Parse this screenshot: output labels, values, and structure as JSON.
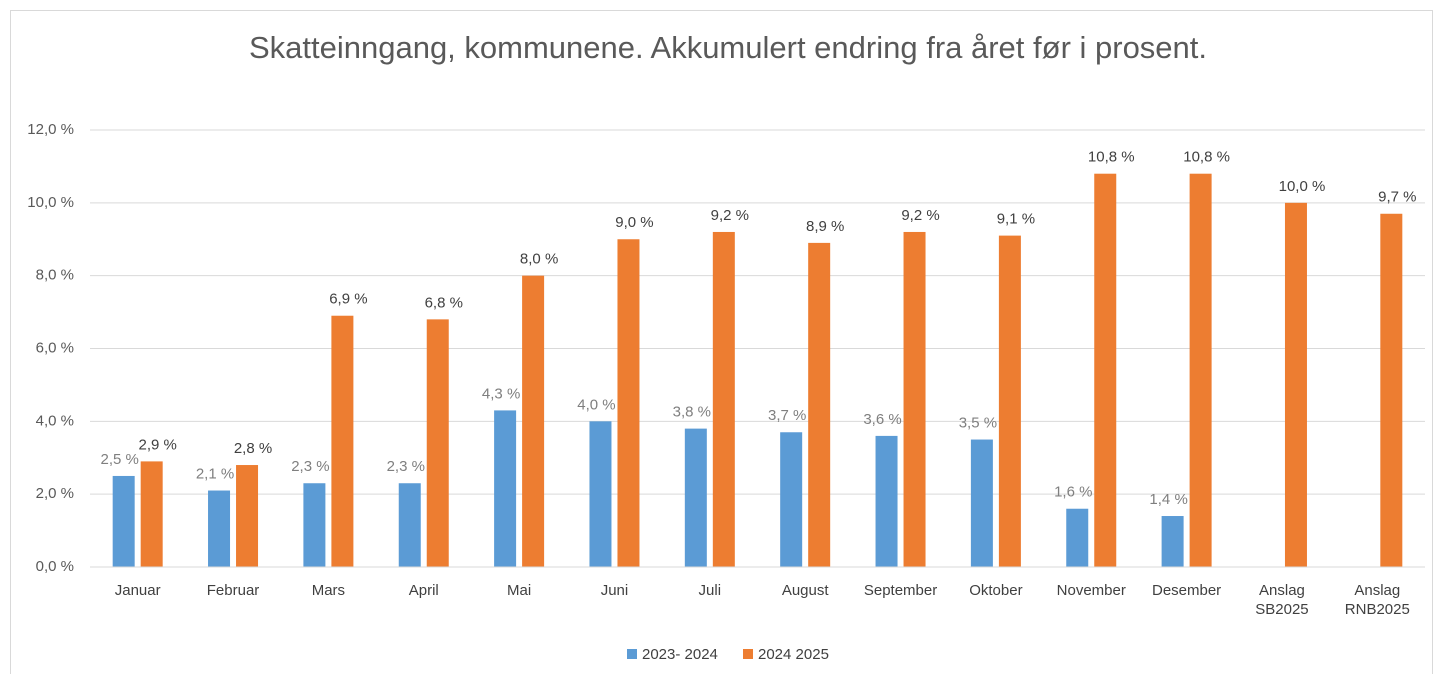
{
  "chart_data": {
    "type": "bar",
    "title": "Skatteinngang, kommunene. Akkumulert endring fra året før i prosent.",
    "categories": [
      "Januar",
      "Februar",
      "Mars",
      "April",
      "Mai",
      "Juni",
      "Juli",
      "August",
      "September",
      "Oktober",
      "November",
      "Desember",
      "Anslag SB2025",
      "Anslag RNB2025"
    ],
    "series": [
      {
        "name": "2023- 2024",
        "color": "#5b9bd5",
        "values": [
          2.5,
          2.1,
          2.3,
          2.3,
          4.3,
          4.0,
          3.8,
          3.7,
          3.6,
          3.5,
          1.6,
          1.4,
          null,
          null
        ],
        "value_labels": [
          "2,5 %",
          "2,1 %",
          "2,3 %",
          "2,3 %",
          "4,3 %",
          "4,0 %",
          "3,8 %",
          "3,7 %",
          "3,6 %",
          "3,5 %",
          "1,6 %",
          "1,4 %",
          null,
          null
        ]
      },
      {
        "name": "2024 2025",
        "color": "#ed7d31",
        "values": [
          2.9,
          2.8,
          6.9,
          6.8,
          8.0,
          9.0,
          9.2,
          8.9,
          9.2,
          9.1,
          10.8,
          10.8,
          10.0,
          9.7
        ],
        "value_labels": [
          "2,9 %",
          "2,8 %",
          "6,9 %",
          "6,8 %",
          "8,0 %",
          "9,0 %",
          "9,2 %",
          "8,9 %",
          "9,2 %",
          "9,1 %",
          "10,8 %",
          "10,8 %",
          "10,0 %",
          "9,7 %"
        ]
      }
    ],
    "ylim": [
      0,
      12
    ],
    "yticks": [
      {
        "value": 0,
        "label": "0,0 %"
      },
      {
        "value": 2,
        "label": "2,0 %"
      },
      {
        "value": 4,
        "label": "4,0 %"
      },
      {
        "value": 6,
        "label": "6,0 %"
      },
      {
        "value": 8,
        "label": "8,0 %"
      },
      {
        "value": 10,
        "label": "10,0 %"
      },
      {
        "value": 12,
        "label": "12,0 %"
      }
    ],
    "grid": true,
    "legend": "bottom"
  }
}
